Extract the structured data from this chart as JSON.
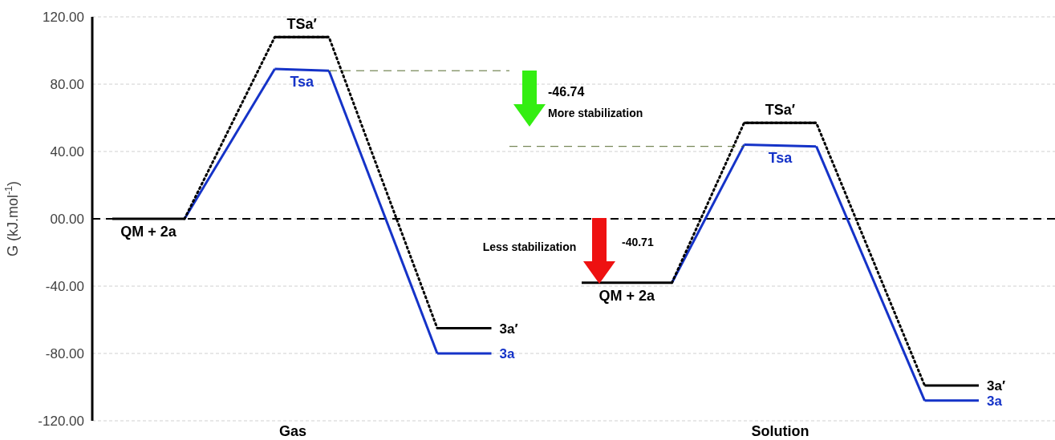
{
  "chart_data": {
    "type": "line",
    "ylabel": "G (kJ.mol$^{-1}$)",
    "categories": [
      null,
      null,
      null,
      null,
      null,
      null,
      null,
      null,
      null,
      null,
      "Gas",
      null,
      null,
      null,
      null,
      null,
      null,
      null,
      null,
      null,
      null,
      null,
      null,
      null,
      null,
      null,
      null,
      null,
      null,
      null,
      null,
      null,
      null,
      null,
      null,
      null,
      null,
      "Solution",
      null,
      null,
      null,
      null,
      null,
      null,
      null,
      null,
      null,
      null,
      null
    ],
    "ylim": [
      -120,
      120
    ],
    "yticks": [
      {
        "value": -120,
        "label": "-120.00"
      },
      {
        "value": -80,
        "label": "-80.00"
      },
      {
        "value": -40,
        "label": "-40.00"
      },
      {
        "value": 0,
        "label": "00.00"
      },
      {
        "value": 40,
        "label": "40.00"
      },
      {
        "value": 80,
        "label": "80.00"
      },
      {
        "value": 120,
        "label": "120.00"
      }
    ],
    "grid": "y",
    "marker": "none",
    "series": [
      {
        "name": "QM + 2a",
        "color": "#000000",
        "line_style": "solid",
        "values": [
          0,
          null,
          null,
          null,
          0,
          null,
          null,
          null,
          null,
          null,
          null,
          null,
          null,
          null,
          null,
          null,
          null,
          null,
          null,
          null,
          null,
          null,
          null,
          null,
          null,
          null,
          null,
          null,
          null,
          null,
          null,
          null,
          null,
          null,
          null,
          null,
          null,
          null,
          null,
          null,
          null,
          null,
          null,
          null,
          null,
          null,
          null,
          null,
          null
        ]
      },
      {
        "color": "#1533c8",
        "line_style": "solid",
        "values": [
          null,
          null,
          null,
          null,
          0,
          null,
          null,
          null,
          null,
          89,
          null,
          null,
          null,
          null,
          null,
          null,
          null,
          null,
          null,
          null,
          null,
          null,
          null,
          null,
          null,
          null,
          null,
          null,
          null,
          null,
          null,
          null,
          null,
          null,
          null,
          null,
          null,
          null,
          null,
          null,
          null,
          null,
          null,
          null,
          null,
          null,
          null,
          null,
          null
        ]
      },
      {
        "name": "Tsa",
        "color": "#1533c8",
        "line_style": "solid",
        "values": [
          null,
          null,
          null,
          null,
          null,
          null,
          null,
          null,
          null,
          89,
          null,
          null,
          88,
          null,
          null,
          null,
          null,
          null,
          null,
          null,
          null,
          null,
          null,
          null,
          null,
          null,
          null,
          null,
          null,
          null,
          null,
          null,
          null,
          null,
          null,
          null,
          null,
          null,
          null,
          null,
          null,
          null,
          null,
          null,
          null,
          null,
          null,
          null,
          null
        ]
      },
      {
        "color": "#1533c8",
        "line_style": "solid",
        "values": [
          null,
          null,
          null,
          null,
          null,
          null,
          null,
          null,
          null,
          null,
          null,
          null,
          88,
          null,
          null,
          null,
          null,
          null,
          -80,
          null,
          null,
          null,
          null,
          null,
          null,
          null,
          null,
          null,
          null,
          null,
          null,
          null,
          null,
          null,
          null,
          null,
          null,
          null,
          null,
          null,
          null,
          null,
          null,
          null,
          null,
          null,
          null,
          null,
          null
        ]
      },
      {
        "name": "3a",
        "color": "#1533c8",
        "line_style": "solid",
        "values": [
          null,
          null,
          null,
          null,
          null,
          null,
          null,
          null,
          null,
          null,
          null,
          null,
          null,
          null,
          null,
          null,
          null,
          null,
          -80,
          null,
          null,
          -80,
          null,
          null,
          null,
          null,
          null,
          null,
          null,
          null,
          null,
          null,
          null,
          null,
          null,
          null,
          null,
          null,
          null,
          null,
          null,
          null,
          null,
          null,
          null,
          null,
          null,
          null,
          null
        ]
      },
      {
        "color": "#000000",
        "line_style": "dotted",
        "values": [
          null,
          null,
          null,
          null,
          0,
          null,
          null,
          null,
          null,
          108,
          null,
          null,
          108,
          null,
          null,
          null,
          null,
          null,
          -65,
          null,
          null,
          null,
          null,
          null,
          null,
          null,
          null,
          null,
          null,
          null,
          null,
          null,
          null,
          null,
          null,
          null,
          null,
          null,
          null,
          null,
          null,
          null,
          null,
          null,
          null,
          null,
          null,
          null,
          null
        ]
      },
      {
        "name": "TSa′",
        "color": "#000000",
        "line_style": "solid",
        "values": [
          null,
          null,
          null,
          null,
          null,
          null,
          null,
          null,
          null,
          108,
          null,
          null,
          108,
          null,
          null,
          null,
          null,
          null,
          null,
          null,
          null,
          null,
          null,
          null,
          null,
          null,
          null,
          null,
          null,
          null,
          null,
          null,
          null,
          null,
          null,
          null,
          null,
          null,
          null,
          null,
          null,
          null,
          null,
          null,
          null,
          null,
          null,
          null,
          null
        ]
      },
      {
        "name": "3a′",
        "color": "#000000",
        "line_style": "solid",
        "values": [
          null,
          null,
          null,
          null,
          null,
          null,
          null,
          null,
          null,
          null,
          null,
          null,
          null,
          null,
          null,
          null,
          null,
          null,
          -65,
          null,
          null,
          -65,
          null,
          null,
          null,
          null,
          null,
          null,
          null,
          null,
          null,
          null,
          null,
          null,
          null,
          null,
          null,
          null,
          null,
          null,
          null,
          null,
          null,
          null,
          null,
          null,
          null,
          null,
          null
        ]
      },
      {
        "name": "QM + 2a",
        "color": "#000000",
        "line_style": "solid",
        "values": [
          null,
          null,
          null,
          null,
          null,
          null,
          null,
          null,
          null,
          null,
          null,
          null,
          null,
          null,
          null,
          null,
          null,
          null,
          null,
          null,
          null,
          null,
          null,
          null,
          null,
          null,
          -38,
          null,
          null,
          null,
          null,
          -38,
          null,
          null,
          null,
          null,
          null,
          null,
          null,
          null,
          null,
          null,
          null,
          null,
          null,
          null,
          null,
          null,
          null
        ]
      },
      {
        "color": "#1533c8",
        "line_style": "solid",
        "values": [
          null,
          null,
          null,
          null,
          null,
          null,
          null,
          null,
          null,
          null,
          null,
          null,
          null,
          null,
          null,
          null,
          null,
          null,
          null,
          null,
          null,
          null,
          null,
          null,
          null,
          null,
          null,
          null,
          null,
          null,
          null,
          -38,
          null,
          null,
          null,
          44,
          null,
          null,
          null,
          null,
          null,
          null,
          null,
          null,
          null,
          null,
          null,
          null,
          null
        ]
      },
      {
        "name": "Tsa",
        "color": "#1533c8",
        "line_style": "solid",
        "values": [
          null,
          null,
          null,
          null,
          null,
          null,
          null,
          null,
          null,
          null,
          null,
          null,
          null,
          null,
          null,
          null,
          null,
          null,
          null,
          null,
          null,
          null,
          null,
          null,
          null,
          null,
          null,
          null,
          null,
          null,
          null,
          null,
          null,
          null,
          null,
          44,
          null,
          null,
          null,
          43,
          null,
          null,
          null,
          null,
          null,
          null,
          null,
          null,
          null
        ]
      },
      {
        "color": "#1533c8",
        "line_style": "solid",
        "values": [
          null,
          null,
          null,
          null,
          null,
          null,
          null,
          null,
          null,
          null,
          null,
          null,
          null,
          null,
          null,
          null,
          null,
          null,
          null,
          null,
          null,
          null,
          null,
          null,
          null,
          null,
          null,
          null,
          null,
          null,
          null,
          null,
          null,
          null,
          null,
          null,
          null,
          null,
          null,
          43,
          null,
          null,
          null,
          null,
          null,
          -108,
          null,
          null,
          null
        ]
      },
      {
        "name": "3a",
        "color": "#1533c8",
        "line_style": "solid",
        "values": [
          null,
          null,
          null,
          null,
          null,
          null,
          null,
          null,
          null,
          null,
          null,
          null,
          null,
          null,
          null,
          null,
          null,
          null,
          null,
          null,
          null,
          null,
          null,
          null,
          null,
          null,
          null,
          null,
          null,
          null,
          null,
          null,
          null,
          null,
          null,
          null,
          null,
          null,
          null,
          null,
          null,
          null,
          null,
          null,
          null,
          -108,
          null,
          null,
          -108
        ]
      },
      {
        "color": "#000000",
        "line_style": "dotted",
        "values": [
          null,
          null,
          null,
          null,
          null,
          null,
          null,
          null,
          null,
          null,
          null,
          null,
          null,
          null,
          null,
          null,
          null,
          null,
          null,
          null,
          null,
          null,
          null,
          null,
          null,
          null,
          null,
          null,
          null,
          null,
          null,
          -38,
          null,
          null,
          null,
          57,
          null,
          null,
          null,
          57,
          null,
          null,
          null,
          null,
          null,
          -99,
          null,
          null,
          null
        ]
      },
      {
        "name": "TSa′",
        "color": "#000000",
        "line_style": "solid",
        "values": [
          null,
          null,
          null,
          null,
          null,
          null,
          null,
          null,
          null,
          null,
          null,
          null,
          null,
          null,
          null,
          null,
          null,
          null,
          null,
          null,
          null,
          null,
          null,
          null,
          null,
          null,
          null,
          null,
          null,
          null,
          null,
          null,
          null,
          null,
          null,
          57,
          null,
          null,
          null,
          57,
          null,
          null,
          null,
          null,
          null,
          null,
          null,
          null,
          null
        ]
      },
      {
        "name": "3a′",
        "color": "#000000",
        "line_style": "solid",
        "values": [
          null,
          null,
          null,
          null,
          null,
          null,
          null,
          null,
          null,
          null,
          null,
          null,
          null,
          null,
          null,
          null,
          null,
          null,
          null,
          null,
          null,
          null,
          null,
          null,
          null,
          null,
          null,
          null,
          null,
          null,
          null,
          null,
          null,
          null,
          null,
          null,
          null,
          null,
          null,
          null,
          null,
          null,
          null,
          null,
          null,
          -99,
          null,
          null,
          -99
        ]
      },
      {
        "color": "#556b2f",
        "line_style": "dashed",
        "values": [
          null,
          null,
          null,
          null,
          null,
          null,
          null,
          null,
          null,
          null,
          null,
          null,
          88,
          null,
          null,
          null,
          null,
          null,
          null,
          null,
          null,
          null,
          88,
          null,
          null,
          null,
          null,
          null,
          null,
          null,
          null,
          null,
          null,
          null,
          null,
          null,
          null,
          null,
          null,
          null,
          null,
          null,
          null,
          null,
          null,
          null,
          null,
          null,
          null
        ]
      },
      {
        "color": "#556b2f",
        "line_style": "dashed",
        "values": [
          null,
          null,
          null,
          null,
          null,
          null,
          null,
          null,
          null,
          null,
          null,
          null,
          null,
          null,
          null,
          null,
          null,
          null,
          null,
          null,
          null,
          null,
          43,
          null,
          null,
          null,
          null,
          null,
          null,
          null,
          null,
          null,
          null,
          null,
          null,
          43,
          null,
          null,
          null,
          null,
          null,
          null,
          null,
          null,
          null,
          null,
          null,
          null,
          null
        ]
      }
    ],
    "ref_lines": [
      {
        "axis": "y",
        "value": 0,
        "color": "#000000",
        "line_style": "dashed"
      }
    ],
    "annotations": [
      "-46.74",
      "More stabilization",
      "Less stabilization",
      "-40.71"
    ]
  }
}
